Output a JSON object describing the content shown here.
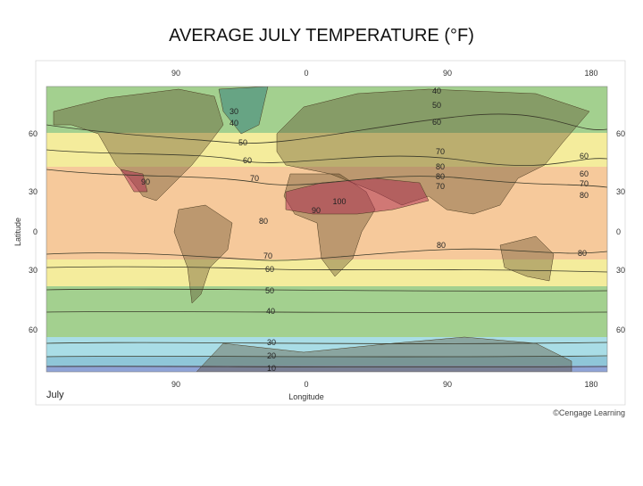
{
  "title": "AVERAGE JULY TEMPERATURE (°F)",
  "map": {
    "longitude_ticks_top": [
      "90",
      "0",
      "90",
      "180"
    ],
    "longitude_ticks_bottom": [
      "90",
      "0",
      "90",
      "180"
    ],
    "latitude_ticks_left": [
      "60",
      "30",
      "0",
      "30",
      "60"
    ],
    "latitude_ticks_right": [
      "60",
      "30",
      "0",
      "30",
      "60"
    ],
    "x_axis_label": "Longitude",
    "y_axis_label": "Latitude",
    "season_label": "July",
    "isotherm_labels": [
      "40",
      "30",
      "40",
      "50",
      "60",
      "50",
      "60",
      "70",
      "90",
      "70",
      "80",
      "80",
      "70",
      "60",
      "60",
      "70",
      "80",
      "100",
      "90",
      "80",
      "80",
      "80",
      "70",
      "60",
      "50",
      "40",
      "30",
      "20",
      "10"
    ]
  },
  "credit": "©Cengage Learning"
}
